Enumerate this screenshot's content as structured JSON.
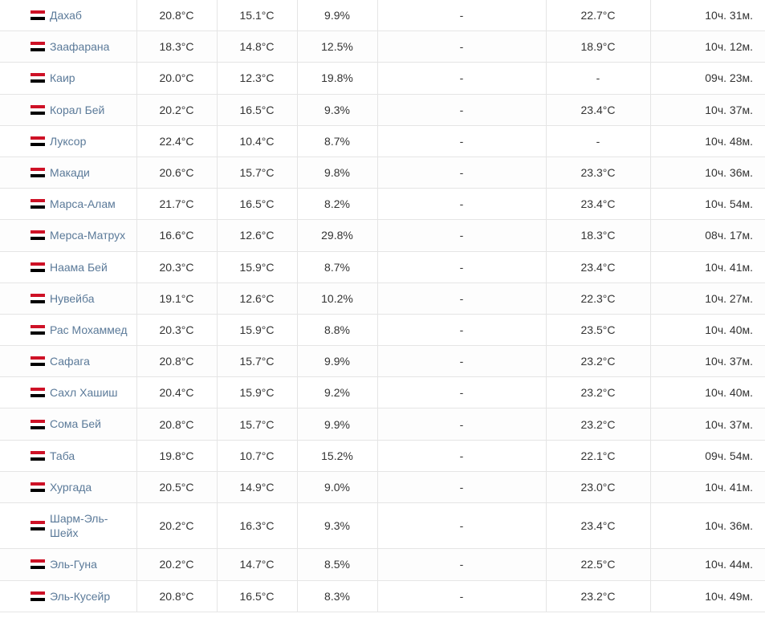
{
  "table": {
    "flag_country": "egypt",
    "flag_colors": {
      "top": "#ce1126",
      "middle": "#ffffff",
      "bottom": "#000000"
    },
    "link_color": "#5b7a99",
    "text_color": "#333333",
    "border_color": "#e5e5e5",
    "col_widths": {
      "name": 170,
      "temp1": 100,
      "temp2": 100,
      "pct": 100,
      "dash": 210,
      "temp3": 130,
      "time": 143
    },
    "rows": [
      {
        "city": "Дахаб",
        "temp1": "20.8°C",
        "temp2": "15.1°C",
        "pct": "9.9%",
        "dash": "-",
        "temp3": "22.7°C",
        "time": "10ч. 31м."
      },
      {
        "city": "Заафарана",
        "temp1": "18.3°C",
        "temp2": "14.8°C",
        "pct": "12.5%",
        "dash": "-",
        "temp3": "18.9°C",
        "time": "10ч. 12м."
      },
      {
        "city": "Каир",
        "temp1": "20.0°C",
        "temp2": "12.3°C",
        "pct": "19.8%",
        "dash": "-",
        "temp3": "-",
        "time": "09ч. 23м."
      },
      {
        "city": "Корал Бей",
        "temp1": "20.2°C",
        "temp2": "16.5°C",
        "pct": "9.3%",
        "dash": "-",
        "temp3": "23.4°C",
        "time": "10ч. 37м."
      },
      {
        "city": "Луксор",
        "temp1": "22.4°C",
        "temp2": "10.4°C",
        "pct": "8.7%",
        "dash": "-",
        "temp3": "-",
        "time": "10ч. 48м."
      },
      {
        "city": "Макади",
        "temp1": "20.6°C",
        "temp2": "15.7°C",
        "pct": "9.8%",
        "dash": "-",
        "temp3": "23.3°C",
        "time": "10ч. 36м."
      },
      {
        "city": "Марса-Алам",
        "temp1": "21.7°C",
        "temp2": "16.5°C",
        "pct": "8.2%",
        "dash": "-",
        "temp3": "23.4°C",
        "time": "10ч. 54м."
      },
      {
        "city": "Мерса-Матрух",
        "temp1": "16.6°C",
        "temp2": "12.6°C",
        "pct": "29.8%",
        "dash": "-",
        "temp3": "18.3°C",
        "time": "08ч. 17м."
      },
      {
        "city": "Наама Бей",
        "temp1": "20.3°C",
        "temp2": "15.9°C",
        "pct": "8.7%",
        "dash": "-",
        "temp3": "23.4°C",
        "time": "10ч. 41м."
      },
      {
        "city": "Нувейба",
        "temp1": "19.1°C",
        "temp2": "12.6°C",
        "pct": "10.2%",
        "dash": "-",
        "temp3": "22.3°C",
        "time": "10ч. 27м."
      },
      {
        "city": "Рас Мохаммед",
        "temp1": "20.3°C",
        "temp2": "15.9°C",
        "pct": "8.8%",
        "dash": "-",
        "temp3": "23.5°C",
        "time": "10ч. 40м."
      },
      {
        "city": "Сафага",
        "temp1": "20.8°C",
        "temp2": "15.7°C",
        "pct": "9.9%",
        "dash": "-",
        "temp3": "23.2°C",
        "time": "10ч. 37м."
      },
      {
        "city": "Сахл Хашиш",
        "temp1": "20.4°C",
        "temp2": "15.9°C",
        "pct": "9.2%",
        "dash": "-",
        "temp3": "23.2°C",
        "time": "10ч. 40м."
      },
      {
        "city": "Сома Бей",
        "temp1": "20.8°C",
        "temp2": "15.7°C",
        "pct": "9.9%",
        "dash": "-",
        "temp3": "23.2°C",
        "time": "10ч. 37м."
      },
      {
        "city": "Таба",
        "temp1": "19.8°C",
        "temp2": "10.7°C",
        "pct": "15.2%",
        "dash": "-",
        "temp3": "22.1°C",
        "time": "09ч. 54м."
      },
      {
        "city": "Хургада",
        "temp1": "20.5°C",
        "temp2": "14.9°C",
        "pct": "9.0%",
        "dash": "-",
        "temp3": "23.0°C",
        "time": "10ч. 41м."
      },
      {
        "city": "Шарм-Эль-Шейх",
        "temp1": "20.2°C",
        "temp2": "16.3°C",
        "pct": "9.3%",
        "dash": "-",
        "temp3": "23.4°C",
        "time": "10ч. 36м."
      },
      {
        "city": "Эль-Гуна",
        "temp1": "20.2°C",
        "temp2": "14.7°C",
        "pct": "8.5%",
        "dash": "-",
        "temp3": "22.5°C",
        "time": "10ч. 44м."
      },
      {
        "city": "Эль-Кусейр",
        "temp1": "20.8°C",
        "temp2": "16.5°C",
        "pct": "8.3%",
        "dash": "-",
        "temp3": "23.2°C",
        "time": "10ч. 49м."
      }
    ]
  }
}
